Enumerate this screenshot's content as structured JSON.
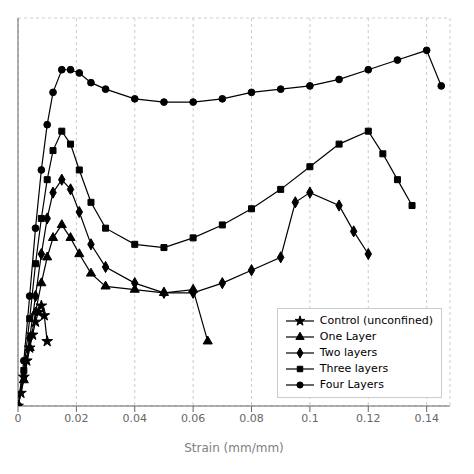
{
  "chart_data": {
    "type": "line",
    "xlabel": "Strain (mm/mm)",
    "xlim": [
      0,
      0.148
    ],
    "xticks": [
      0,
      0.02,
      0.04,
      0.06,
      0.08,
      0.1,
      0.12,
      0.14
    ],
    "ylim": [
      0,
      1.2
    ],
    "yticks": [
      0,
      0.2,
      0.4,
      0.6,
      0.8,
      1.0,
      1.2
    ],
    "grid": true,
    "legend": "lower right",
    "tick_labels": "x",
    "series": [
      {
        "name": "Control (unconfined)",
        "color": "#000000",
        "marker": "star",
        "x": [
          0.0,
          0.001,
          0.002,
          0.003,
          0.004,
          0.005,
          0.006,
          0.007,
          0.008,
          0.009,
          0.01
        ],
        "values": [
          0,
          0.04,
          0.09,
          0.14,
          0.18,
          0.22,
          0.26,
          0.29,
          0.31,
          0.28,
          0.2
        ]
      },
      {
        "name": "One Layer",
        "color": "#000000",
        "marker": "triangle",
        "x": [
          0.0,
          0.002,
          0.004,
          0.006,
          0.008,
          0.01,
          0.012,
          0.015,
          0.018,
          0.021,
          0.025,
          0.03,
          0.04,
          0.05,
          0.06,
          0.065
        ],
        "values": [
          0,
          0.08,
          0.18,
          0.29,
          0.38,
          0.46,
          0.52,
          0.56,
          0.52,
          0.47,
          0.41,
          0.37,
          0.36,
          0.35,
          0.36,
          0.2
        ]
      },
      {
        "name": "Two layers",
        "color": "#000000",
        "marker": "diamond",
        "x": [
          0.0,
          0.002,
          0.004,
          0.006,
          0.008,
          0.01,
          0.012,
          0.015,
          0.018,
          0.021,
          0.025,
          0.03,
          0.04,
          0.05,
          0.06,
          0.07,
          0.08,
          0.09,
          0.095,
          0.1,
          0.11,
          0.115,
          0.12
        ],
        "values": [
          0,
          0.09,
          0.21,
          0.34,
          0.47,
          0.58,
          0.66,
          0.7,
          0.67,
          0.6,
          0.5,
          0.43,
          0.38,
          0.35,
          0.35,
          0.38,
          0.42,
          0.46,
          0.63,
          0.66,
          0.62,
          0.54,
          0.47
        ]
      },
      {
        "name": "Three layers",
        "color": "#000000",
        "marker": "square",
        "x": [
          0.0,
          0.002,
          0.004,
          0.006,
          0.008,
          0.01,
          0.012,
          0.015,
          0.018,
          0.021,
          0.025,
          0.03,
          0.04,
          0.05,
          0.06,
          0.07,
          0.08,
          0.09,
          0.1,
          0.11,
          0.12,
          0.125,
          0.13,
          0.135
        ],
        "values": [
          0,
          0.11,
          0.27,
          0.44,
          0.58,
          0.7,
          0.79,
          0.85,
          0.81,
          0.73,
          0.63,
          0.55,
          0.5,
          0.49,
          0.52,
          0.56,
          0.61,
          0.67,
          0.74,
          0.81,
          0.85,
          0.78,
          0.7,
          0.62
        ]
      },
      {
        "name": "Four Layers",
        "color": "#000000",
        "marker": "circle",
        "x": [
          0.0,
          0.002,
          0.004,
          0.006,
          0.008,
          0.01,
          0.012,
          0.015,
          0.018,
          0.021,
          0.025,
          0.03,
          0.04,
          0.05,
          0.06,
          0.07,
          0.08,
          0.09,
          0.1,
          0.11,
          0.12,
          0.13,
          0.14,
          0.145
        ],
        "values": [
          0,
          0.14,
          0.34,
          0.55,
          0.73,
          0.87,
          0.97,
          1.04,
          1.04,
          1.03,
          1.0,
          0.98,
          0.95,
          0.94,
          0.94,
          0.95,
          0.97,
          0.98,
          0.99,
          1.01,
          1.04,
          1.07,
          1.1,
          0.99
        ]
      }
    ]
  }
}
